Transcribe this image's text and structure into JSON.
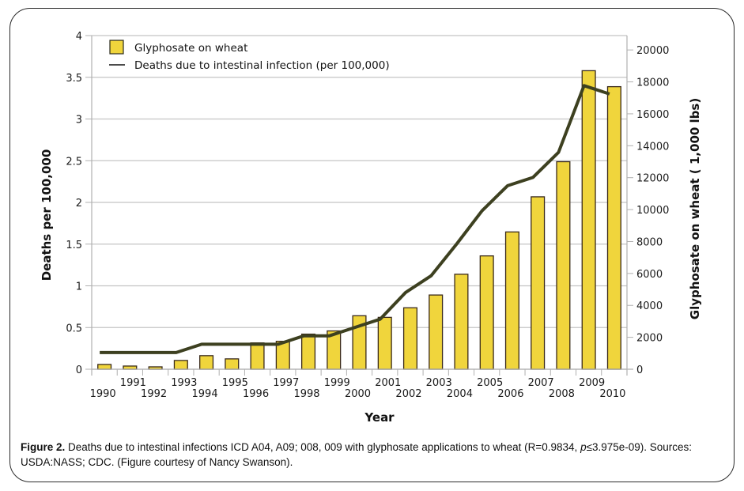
{
  "chart_data": {
    "type": "bar",
    "title": "",
    "categories": [
      "1990",
      "1991",
      "1992",
      "1993",
      "1994",
      "1995",
      "1996",
      "1997",
      "1998",
      "1999",
      "2000",
      "2001",
      "2002",
      "2003",
      "2004",
      "2005",
      "2006",
      "2007",
      "2008",
      "2009",
      "2010"
    ],
    "series": [
      {
        "name": "Glyphosate on wheat",
        "type": "bar",
        "axis": "right",
        "color": "#f0d53c",
        "edge_color": "#3a2a1a",
        "values": [
          300,
          200,
          150,
          550,
          850,
          650,
          1650,
          1750,
          2200,
          2400,
          3350,
          3250,
          3850,
          4650,
          5950,
          7100,
          8600,
          10800,
          13000,
          18700,
          17700
        ]
      },
      {
        "name": "Deaths due to intestinal infection (per 100,000)",
        "type": "line",
        "axis": "left",
        "color": "#3d4020",
        "values": [
          0.2,
          0.2,
          0.2,
          0.2,
          0.3,
          0.3,
          0.3,
          0.3,
          0.4,
          0.4,
          0.5,
          0.6,
          0.92,
          1.12,
          1.5,
          1.9,
          2.2,
          2.3,
          2.6,
          3.4,
          3.3
        ]
      }
    ],
    "xlabel": "Year",
    "ylabel": "Deaths per 100,000",
    "y2label": "Glyphosate on wheat ( 1,000 lbs)",
    "ylim": [
      0,
      4
    ],
    "y2lim": [
      0,
      20900
    ],
    "yticks": [
      "0",
      "0.5",
      "1",
      "1.5",
      "2",
      "2.5",
      "3",
      "3.5",
      "4"
    ],
    "y2ticks": [
      "0",
      "2000",
      "4000",
      "6000",
      "8000",
      "10000",
      "12000",
      "14000",
      "16000",
      "18000",
      "20000"
    ],
    "grid": true,
    "legend": {
      "placement": "top-left",
      "entries": [
        "Glyphosate on wheat",
        "Deaths due to intestinal infection (per 100,000)"
      ]
    }
  },
  "caption": {
    "label": "Figure 2.",
    "text_before_p": " Deaths due to intestinal infections ICD A04, A09; 008, 009 with glyphosate applications to wheat (R=0.9834, ",
    "p_symbol": "p",
    "text_after_p": "≤3.975e-09). Sources: USDA:NASS; CDC. (Figure courtesy of Nancy Swanson)."
  }
}
